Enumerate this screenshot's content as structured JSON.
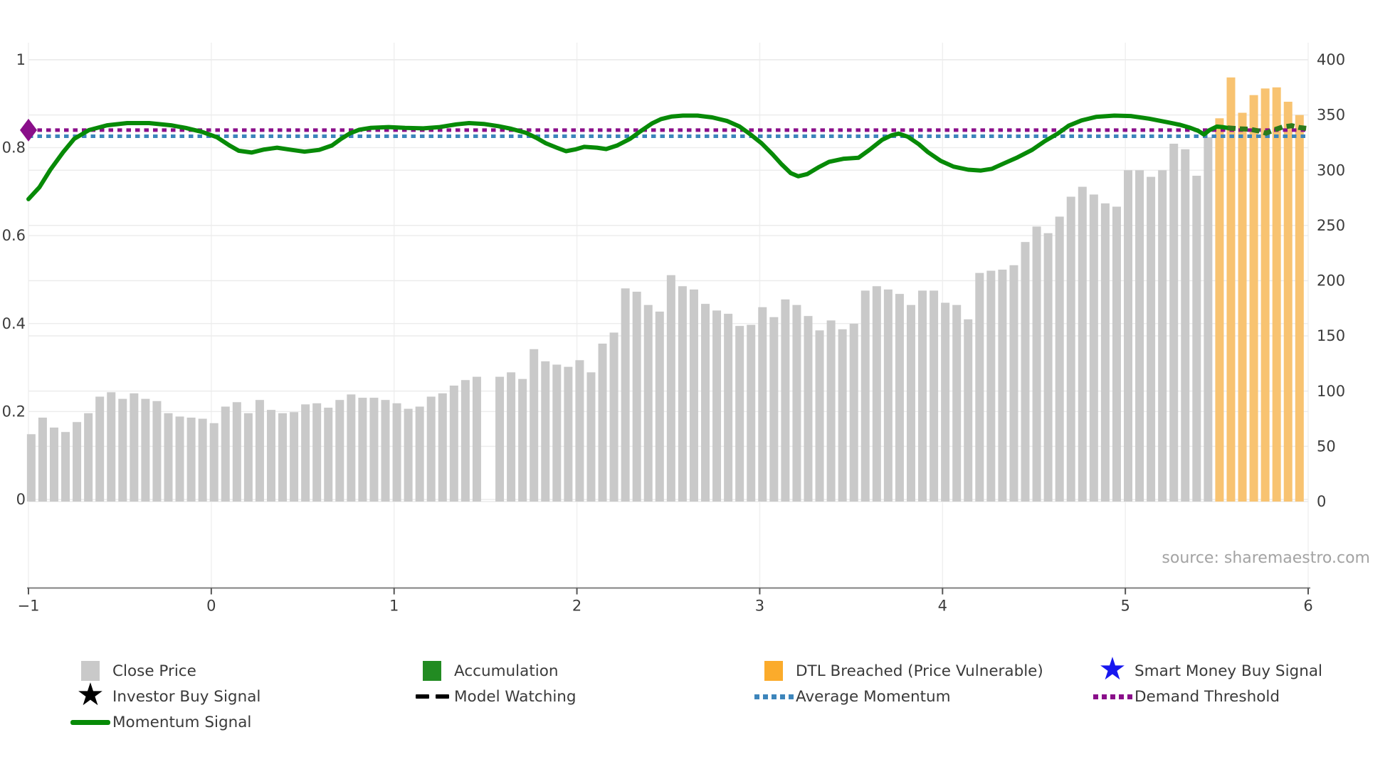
{
  "source_label": "source: sharemaestro.com",
  "chart_data": {
    "type": "combo-bar-line",
    "title": "",
    "x_axis": {
      "tick_labels": [
        "−1",
        "0",
        "1",
        "2",
        "3",
        "4",
        "5",
        "6"
      ],
      "tick_values": [
        -1,
        0,
        1,
        2,
        3,
        4,
        5,
        6
      ],
      "range": [
        -1.02,
        6.02
      ],
      "grid": true
    },
    "left_axis": {
      "tick_labels": [
        "0",
        "0.2",
        "0.4",
        "0.6",
        "0.8",
        "1"
      ],
      "tick_values": [
        0,
        0.2,
        0.4,
        0.6,
        0.8,
        1
      ],
      "range": [
        0,
        1
      ],
      "grid": true
    },
    "right_axis": {
      "tick_labels": [
        "0",
        "50",
        "100",
        "150",
        "200",
        "250",
        "300",
        "350",
        "400"
      ],
      "tick_values": [
        0,
        50,
        100,
        150,
        200,
        250,
        300,
        350,
        400
      ],
      "range": [
        0,
        400
      ],
      "grid": true
    },
    "bars": {
      "x_start": -0.985,
      "x_step": 0.0625,
      "close_price": {
        "name": "Close Price",
        "color": "#c9c9c9",
        "values": [
          61,
          76,
          67,
          63,
          72,
          80,
          95,
          99,
          93,
          98,
          93,
          91,
          80,
          77,
          76,
          75,
          71,
          86,
          90,
          80,
          92,
          83,
          80,
          81,
          88,
          89,
          85,
          92,
          97,
          94,
          94,
          92,
          89,
          84,
          86,
          95,
          98,
          105,
          110,
          113,
          null,
          113,
          117,
          111,
          138,
          127,
          124,
          122,
          128,
          117,
          143,
          153,
          193,
          190,
          178,
          172,
          205,
          195,
          192,
          179,
          173,
          170,
          159,
          160,
          176,
          167,
          183,
          178,
          168,
          155,
          164,
          156,
          161,
          191,
          195,
          192,
          188,
          178,
          191,
          191,
          180,
          178,
          165,
          207,
          209,
          210,
          214,
          235,
          249,
          243,
          258,
          276,
          285,
          278,
          270,
          267,
          300,
          300,
          294,
          300,
          324,
          319,
          295,
          330
        ]
      },
      "dtl_breached": {
        "name": "DTL Breached (Price Vulnerable)",
        "color": "#f8c371",
        "values": [
          347,
          384,
          352,
          368,
          374,
          375,
          362,
          350
        ]
      }
    },
    "momentum_signal": {
      "name": "Momentum Signal",
      "color": "#078a07",
      "points": [
        [
          -1,
          0.683
        ],
        [
          -0.94,
          0.71
        ],
        [
          -0.88,
          0.75
        ],
        [
          -0.81,
          0.79
        ],
        [
          -0.75,
          0.82
        ],
        [
          -0.67,
          0.84
        ],
        [
          -0.57,
          0.851
        ],
        [
          -0.46,
          0.856
        ],
        [
          -0.34,
          0.856
        ],
        [
          -0.22,
          0.851
        ],
        [
          -0.14,
          0.845
        ],
        [
          -0.05,
          0.836
        ],
        [
          0.03,
          0.824
        ],
        [
          0.1,
          0.805
        ],
        [
          0.15,
          0.793
        ],
        [
          0.22,
          0.789
        ],
        [
          0.29,
          0.796
        ],
        [
          0.36,
          0.8
        ],
        [
          0.44,
          0.795
        ],
        [
          0.51,
          0.791
        ],
        [
          0.59,
          0.795
        ],
        [
          0.66,
          0.805
        ],
        [
          0.71,
          0.82
        ],
        [
          0.76,
          0.833
        ],
        [
          0.81,
          0.841
        ],
        [
          0.87,
          0.845
        ],
        [
          0.97,
          0.847
        ],
        [
          1.06,
          0.845
        ],
        [
          1.16,
          0.844
        ],
        [
          1.25,
          0.847
        ],
        [
          1.34,
          0.853
        ],
        [
          1.41,
          0.856
        ],
        [
          1.49,
          0.854
        ],
        [
          1.57,
          0.849
        ],
        [
          1.64,
          0.843
        ],
        [
          1.72,
          0.834
        ],
        [
          1.78,
          0.822
        ],
        [
          1.83,
          0.81
        ],
        [
          1.89,
          0.8
        ],
        [
          1.94,
          0.792
        ],
        [
          1.99,
          0.796
        ],
        [
          2.04,
          0.802
        ],
        [
          2.11,
          0.8
        ],
        [
          2.16,
          0.797
        ],
        [
          2.22,
          0.805
        ],
        [
          2.29,
          0.82
        ],
        [
          2.35,
          0.838
        ],
        [
          2.41,
          0.855
        ],
        [
          2.46,
          0.865
        ],
        [
          2.52,
          0.871
        ],
        [
          2.58,
          0.873
        ],
        [
          2.66,
          0.873
        ],
        [
          2.74,
          0.869
        ],
        [
          2.82,
          0.861
        ],
        [
          2.89,
          0.848
        ],
        [
          2.95,
          0.83
        ],
        [
          3.01,
          0.81
        ],
        [
          3.07,
          0.785
        ],
        [
          3.12,
          0.762
        ],
        [
          3.17,
          0.742
        ],
        [
          3.21,
          0.735
        ],
        [
          3.26,
          0.74
        ],
        [
          3.32,
          0.755
        ],
        [
          3.38,
          0.768
        ],
        [
          3.46,
          0.775
        ],
        [
          3.54,
          0.777
        ],
        [
          3.6,
          0.795
        ],
        [
          3.67,
          0.818
        ],
        [
          3.72,
          0.828
        ],
        [
          3.76,
          0.832
        ],
        [
          3.81,
          0.825
        ],
        [
          3.87,
          0.808
        ],
        [
          3.92,
          0.79
        ],
        [
          3.99,
          0.77
        ],
        [
          4.06,
          0.757
        ],
        [
          4.14,
          0.75
        ],
        [
          4.21,
          0.748
        ],
        [
          4.27,
          0.752
        ],
        [
          4.34,
          0.765
        ],
        [
          4.41,
          0.778
        ],
        [
          4.49,
          0.795
        ],
        [
          4.56,
          0.815
        ],
        [
          4.63,
          0.832
        ],
        [
          4.69,
          0.85
        ],
        [
          4.76,
          0.862
        ],
        [
          4.84,
          0.87
        ],
        [
          4.94,
          0.873
        ],
        [
          5.03,
          0.872
        ],
        [
          5.13,
          0.866
        ],
        [
          5.23,
          0.858
        ],
        [
          5.3,
          0.852
        ],
        [
          5.35,
          0.846
        ],
        [
          5.4,
          0.838
        ],
        [
          5.43,
          0.83
        ],
        [
          5.46,
          0.84
        ],
        [
          5.5,
          0.848
        ],
        [
          5.53,
          0.847
        ],
        [
          5.56,
          0.845
        ]
      ]
    },
    "accumulation_segment": {
      "name": "Accumulation",
      "color": "#2c7a1b",
      "style": "dashed",
      "points": [
        [
          5.56,
          0.845
        ],
        [
          5.62,
          0.843
        ],
        [
          5.68,
          0.842
        ],
        [
          5.73,
          0.838
        ],
        [
          5.77,
          0.833
        ],
        [
          5.81,
          0.84
        ],
        [
          5.86,
          0.847
        ],
        [
          5.91,
          0.85
        ],
        [
          5.95,
          0.846
        ],
        [
          5.99,
          0.844
        ]
      ]
    },
    "average_momentum": {
      "name": "Average Momentum",
      "color": "#3d85bb",
      "style": "dotted",
      "value": 0.826
    },
    "demand_threshold": {
      "name": "Demand Threshold",
      "color": "#8a0f8a",
      "style": "dotted",
      "value": 0.84,
      "marker": {
        "shape": "diamond",
        "x": -1,
        "value": 0.84,
        "color": "#8a0f8a"
      }
    }
  },
  "legend": {
    "items": [
      {
        "label": "Close Price",
        "marker": "square",
        "color": "#c9c9c9",
        "col": 0,
        "row": 0
      },
      {
        "label": "Accumulation",
        "marker": "square",
        "color": "#228b22",
        "col": 1,
        "row": 0
      },
      {
        "label": "DTL Breached (Price Vulnerable)",
        "marker": "square",
        "color": "#fbab2b",
        "col": 2,
        "row": 0
      },
      {
        "label": "Smart Money Buy Signal",
        "marker": "star",
        "color": "#1717ef",
        "col": 3,
        "row": 0
      },
      {
        "label": "Investor Buy Signal",
        "marker": "star",
        "color": "#000000",
        "col": 0,
        "row": 1
      },
      {
        "label": "Model Watching",
        "marker": "dash",
        "color": "#000000",
        "col": 1,
        "row": 1
      },
      {
        "label": "Average Momentum",
        "marker": "dotted",
        "color": "#3d85bb",
        "col": 2,
        "row": 1
      },
      {
        "label": "Demand Threshold",
        "marker": "dotted",
        "color": "#8a0f8a",
        "col": 3,
        "row": 1
      },
      {
        "label": "Momentum Signal",
        "marker": "line",
        "color": "#078a07",
        "col": 0,
        "row": 2
      }
    ]
  }
}
